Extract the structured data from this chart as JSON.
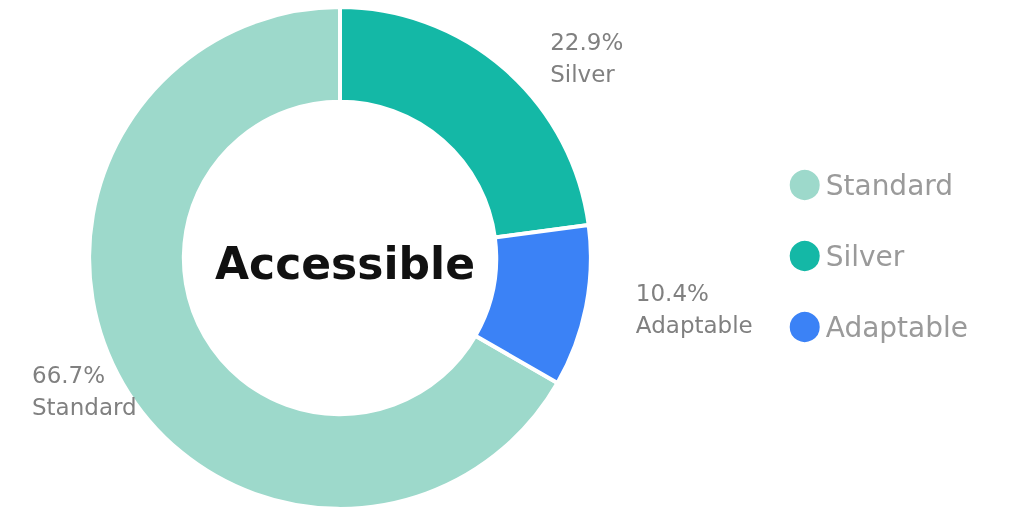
{
  "chart_data": {
    "type": "donut",
    "title": "Accessible",
    "categories": [
      "Standard",
      "Silver",
      "Adaptable"
    ],
    "values": [
      66.7,
      22.9,
      10.4
    ],
    "value_labels": [
      "66.7%",
      "22.9%",
      "10.4%"
    ],
    "colors": [
      "#9dd9cb",
      "#14b8a6",
      "#3b82f6"
    ],
    "legend": "right"
  }
}
